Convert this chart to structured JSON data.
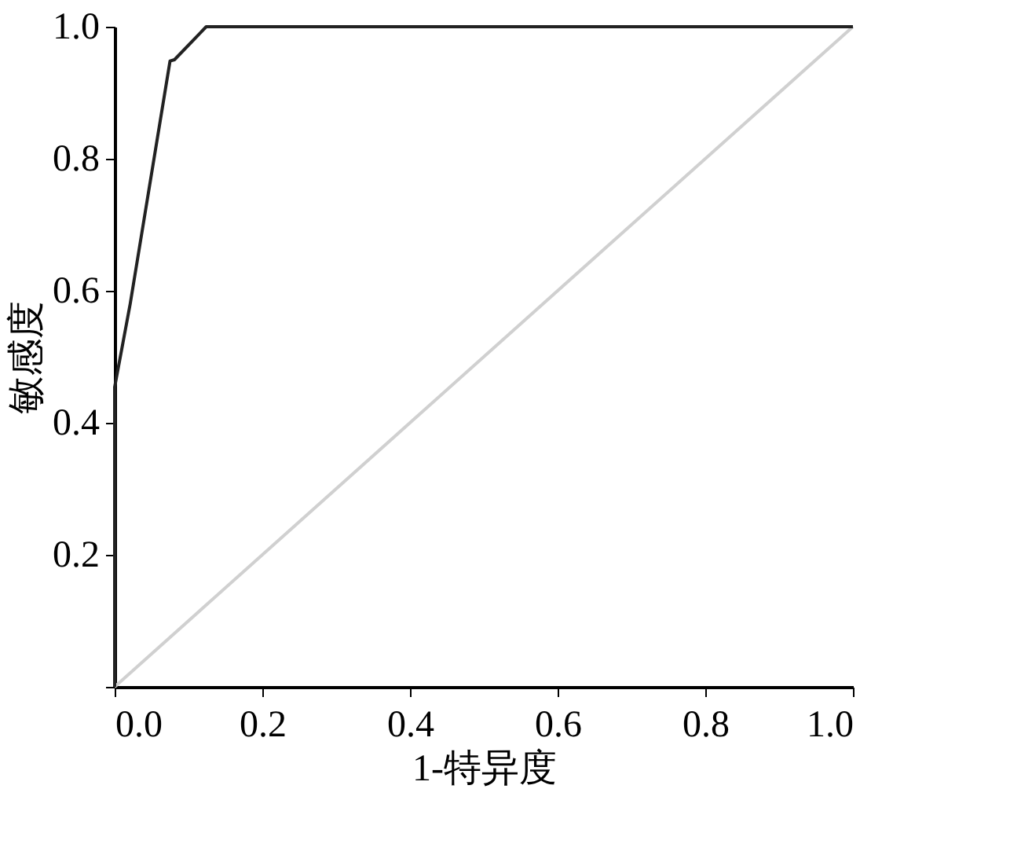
{
  "chart_data": {
    "type": "line",
    "xlabel": "1-特异度",
    "ylabel": "敏感度",
    "xlim": [
      0,
      1
    ],
    "ylim": [
      0,
      1
    ],
    "xticks": [
      {
        "value": 0,
        "label": "0.0"
      },
      {
        "value": 0.2,
        "label": "0.2"
      },
      {
        "value": 0.4,
        "label": "0.4"
      },
      {
        "value": 0.6,
        "label": "0.6"
      },
      {
        "value": 0.8,
        "label": "0.8"
      },
      {
        "value": 1,
        "label": "1.0"
      }
    ],
    "yticks": [
      {
        "value": 0,
        "label": null
      },
      {
        "value": 0.2,
        "label": "0.2"
      },
      {
        "value": 0.4,
        "label": "0.4"
      },
      {
        "value": 0.6,
        "label": "0.6"
      },
      {
        "value": 0.8,
        "label": "0.8"
      },
      {
        "value": 1,
        "label": "1.0"
      }
    ],
    "marker": "none",
    "line_style": "solid",
    "series": [
      {
        "color": "#222222",
        "x": [
          0,
          0,
          0.021,
          0.075,
          0.081,
          0.124,
          1
        ],
        "values": [
          0,
          0.454,
          0.58,
          0.948,
          0.95,
          1,
          1
        ]
      },
      {
        "color": "#d0d0d0",
        "x": [
          0,
          1
        ],
        "values": [
          0,
          1
        ]
      }
    ]
  }
}
